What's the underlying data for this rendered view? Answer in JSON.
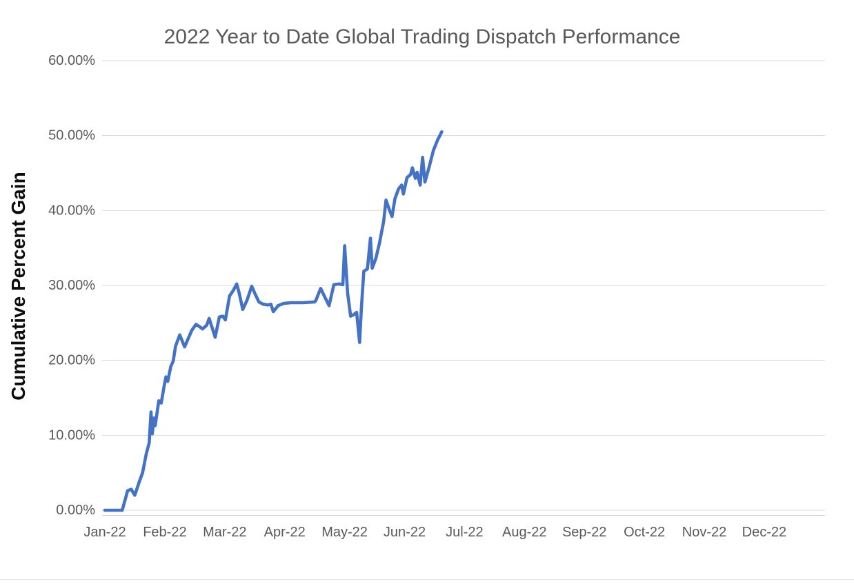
{
  "chart": {
    "title": "2022 Year to Date Global Trading Dispatch Performance",
    "y_axis_title": "Cumulative Percent Gain"
  },
  "colors": {
    "series_line": "#4472C4",
    "gridline": "#D9D9D9",
    "axis_line": "#D0D0D0",
    "title_text": "#595959",
    "tick_text": "#595959",
    "axis_title_text": "#0d0d0d",
    "background": "#FFFFFF"
  },
  "chart_data": {
    "type": "line",
    "title": "2022 Year to Date Global Trading Dispatch Performance",
    "xlabel": "",
    "ylabel": "Cumulative Percent Gain",
    "ylim": [
      0,
      60
    ],
    "xlim_months": [
      0,
      12
    ],
    "grid": "horizontal-only",
    "legend_position": "none",
    "y_ticks": [
      0,
      10,
      20,
      30,
      40,
      50,
      60
    ],
    "y_tick_labels": [
      "0.00%",
      "10.00%",
      "20.00%",
      "30.00%",
      "40.00%",
      "50.00%",
      "60.00%"
    ],
    "x_tick_labels": [
      "Jan-22",
      "Feb-22",
      "Mar-22",
      "Apr-22",
      "May-22",
      "Jun-22",
      "Jul-22",
      "Aug-22",
      "Sep-22",
      "Oct-22",
      "Nov-22",
      "Dec-22"
    ],
    "x_unit": "months since 2022-01-01",
    "y_unit": "cumulative percent gain",
    "series": [
      {
        "name": "Cumulative Percent Gain",
        "color": "#4472C4",
        "points": [
          [
            0.0,
            0.0
          ],
          [
            0.29,
            0.0
          ],
          [
            0.38,
            2.6
          ],
          [
            0.44,
            2.8
          ],
          [
            0.5,
            2.0
          ],
          [
            0.57,
            3.7
          ],
          [
            0.63,
            5.0
          ],
          [
            0.69,
            7.5
          ],
          [
            0.74,
            9.0
          ],
          [
            0.77,
            13.1
          ],
          [
            0.79,
            10.2
          ],
          [
            0.82,
            12.3
          ],
          [
            0.84,
            11.3
          ],
          [
            0.9,
            14.6
          ],
          [
            0.94,
            14.3
          ],
          [
            0.99,
            16.6
          ],
          [
            1.02,
            17.8
          ],
          [
            1.05,
            17.2
          ],
          [
            1.1,
            19.2
          ],
          [
            1.14,
            19.9
          ],
          [
            1.18,
            21.9
          ],
          [
            1.25,
            23.4
          ],
          [
            1.33,
            21.8
          ],
          [
            1.45,
            24.0
          ],
          [
            1.52,
            24.8
          ],
          [
            1.58,
            24.5
          ],
          [
            1.63,
            24.2
          ],
          [
            1.7,
            24.7
          ],
          [
            1.74,
            25.6
          ],
          [
            1.84,
            23.1
          ],
          [
            1.91,
            25.8
          ],
          [
            1.97,
            25.9
          ],
          [
            2.01,
            25.4
          ],
          [
            2.08,
            28.6
          ],
          [
            2.14,
            29.3
          ],
          [
            2.2,
            30.2
          ],
          [
            2.24,
            29.0
          ],
          [
            2.3,
            26.8
          ],
          [
            2.37,
            28.0
          ],
          [
            2.45,
            29.9
          ],
          [
            2.51,
            28.8
          ],
          [
            2.57,
            27.8
          ],
          [
            2.64,
            27.5
          ],
          [
            2.72,
            27.4
          ],
          [
            2.77,
            27.5
          ],
          [
            2.81,
            26.5
          ],
          [
            2.89,
            27.3
          ],
          [
            2.98,
            27.6
          ],
          [
            3.1,
            27.7
          ],
          [
            3.3,
            27.7
          ],
          [
            3.5,
            27.8
          ],
          [
            3.52,
            28.0
          ],
          [
            3.6,
            29.6
          ],
          [
            3.66,
            28.6
          ],
          [
            3.74,
            27.3
          ],
          [
            3.82,
            30.1
          ],
          [
            3.91,
            30.2
          ],
          [
            3.97,
            30.1
          ],
          [
            4.0,
            35.3
          ],
          [
            4.05,
            29.0
          ],
          [
            4.1,
            25.9
          ],
          [
            4.15,
            26.1
          ],
          [
            4.2,
            26.4
          ],
          [
            4.25,
            22.4
          ],
          [
            4.28,
            27.0
          ],
          [
            4.32,
            31.9
          ],
          [
            4.38,
            32.2
          ],
          [
            4.43,
            36.3
          ],
          [
            4.46,
            32.3
          ],
          [
            4.52,
            33.6
          ],
          [
            4.58,
            35.6
          ],
          [
            4.65,
            38.5
          ],
          [
            4.69,
            41.4
          ],
          [
            4.75,
            40.0
          ],
          [
            4.79,
            39.2
          ],
          [
            4.84,
            41.6
          ],
          [
            4.9,
            42.9
          ],
          [
            4.95,
            43.4
          ],
          [
            4.98,
            42.2
          ],
          [
            5.04,
            44.4
          ],
          [
            5.1,
            44.8
          ],
          [
            5.13,
            45.7
          ],
          [
            5.18,
            44.3
          ],
          [
            5.21,
            45.1
          ],
          [
            5.26,
            43.4
          ],
          [
            5.3,
            47.1
          ],
          [
            5.34,
            43.8
          ],
          [
            5.41,
            45.8
          ],
          [
            5.48,
            48.0
          ],
          [
            5.55,
            49.4
          ],
          [
            5.62,
            50.5
          ]
        ]
      }
    ]
  }
}
